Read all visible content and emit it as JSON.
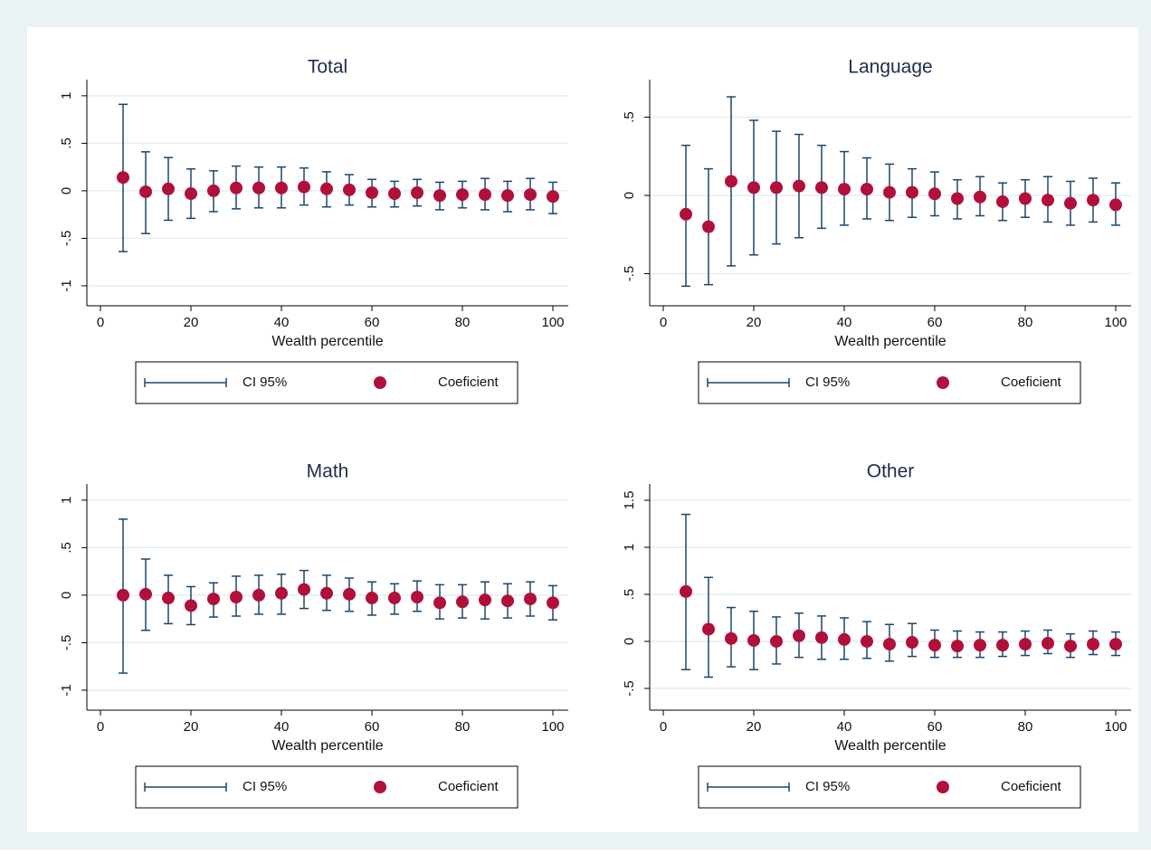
{
  "chart_data": [
    {
      "type": "errorbar",
      "title": "Total",
      "xlabel": "Wealth percentile",
      "x": [
        5,
        10,
        15,
        20,
        25,
        30,
        35,
        40,
        45,
        50,
        55,
        60,
        65,
        70,
        75,
        80,
        85,
        90,
        95,
        100
      ],
      "series": [
        {
          "name": "CI 95%",
          "color": "#1a476f",
          "lower": [
            -0.64,
            -0.45,
            -0.31,
            -0.29,
            -0.22,
            -0.19,
            -0.18,
            -0.18,
            -0.15,
            -0.17,
            -0.15,
            -0.17,
            -0.17,
            -0.16,
            -0.2,
            -0.18,
            -0.2,
            -0.22,
            -0.2,
            -0.24
          ],
          "upper": [
            0.91,
            0.41,
            0.35,
            0.23,
            0.21,
            0.26,
            0.25,
            0.25,
            0.24,
            0.2,
            0.17,
            0.12,
            0.1,
            0.12,
            0.09,
            0.1,
            0.13,
            0.1,
            0.13,
            0.09
          ]
        },
        {
          "name": "Coeficient",
          "color": "#b0103a",
          "values": [
            0.14,
            -0.01,
            0.02,
            -0.03,
            0,
            0.03,
            0.03,
            0.03,
            0.04,
            0.02,
            0.01,
            -0.02,
            -0.03,
            -0.02,
            -0.05,
            -0.04,
            -0.04,
            -0.05,
            -0.04,
            -0.06
          ]
        }
      ],
      "xlim": [
        -3,
        103.4
      ],
      "ylim": [
        -1.21,
        1.17
      ],
      "xticks": [
        0,
        20,
        40,
        60,
        80,
        100
      ],
      "yticks": [
        -1,
        {
          "value": -0.5,
          "label": "-.5"
        },
        0,
        {
          "value": 0.5,
          "label": ".5"
        },
        1
      ],
      "grid": true
    },
    {
      "type": "errorbar",
      "title": "Language",
      "xlabel": "Wealth percentile",
      "x": [
        5,
        10,
        15,
        20,
        25,
        30,
        35,
        40,
        45,
        50,
        55,
        60,
        65,
        70,
        75,
        80,
        85,
        90,
        95,
        100
      ],
      "series": [
        {
          "name": "CI 95%",
          "color": "#1a476f",
          "lower": [
            -0.58,
            -0.57,
            -0.45,
            -0.38,
            -0.31,
            -0.27,
            -0.21,
            -0.19,
            -0.15,
            -0.16,
            -0.14,
            -0.13,
            -0.15,
            -0.13,
            -0.16,
            -0.14,
            -0.17,
            -0.19,
            -0.17,
            -0.19
          ],
          "upper": [
            0.32,
            0.17,
            0.63,
            0.48,
            0.41,
            0.39,
            0.32,
            0.28,
            0.24,
            0.2,
            0.17,
            0.15,
            0.1,
            0.12,
            0.08,
            0.1,
            0.12,
            0.09,
            0.11,
            0.08
          ]
        },
        {
          "name": "Coeficient",
          "color": "#b0103a",
          "values": [
            -0.12,
            -0.2,
            0.09,
            0.05,
            0.05,
            0.06,
            0.05,
            0.04,
            0.04,
            0.02,
            0.02,
            0.01,
            -0.02,
            -0.01,
            -0.04,
            -0.02,
            -0.03,
            -0.05,
            -0.03,
            -0.06
          ]
        }
      ],
      "xlim": [
        -3,
        103.4
      ],
      "ylim": [
        -0.705,
        0.74
      ],
      "xticks": [
        0,
        20,
        40,
        60,
        80,
        100
      ],
      "yticks": [
        {
          "value": -0.5,
          "label": "-.5"
        },
        0,
        {
          "value": 0.5,
          "label": ".5"
        }
      ],
      "grid": true
    },
    {
      "type": "errorbar",
      "title": "Math",
      "xlabel": "Wealth percentile",
      "x": [
        5,
        10,
        15,
        20,
        25,
        30,
        35,
        40,
        45,
        50,
        55,
        60,
        65,
        70,
        75,
        80,
        85,
        90,
        95,
        100
      ],
      "series": [
        {
          "name": "CI 95%",
          "color": "#1a476f",
          "lower": [
            -0.82,
            -0.37,
            -0.3,
            -0.31,
            -0.23,
            -0.22,
            -0.2,
            -0.2,
            -0.14,
            -0.16,
            -0.17,
            -0.21,
            -0.2,
            -0.17,
            -0.25,
            -0.24,
            -0.25,
            -0.24,
            -0.22,
            -0.26
          ],
          "upper": [
            0.8,
            0.38,
            0.21,
            0.09,
            0.13,
            0.2,
            0.21,
            0.22,
            0.26,
            0.21,
            0.18,
            0.14,
            0.12,
            0.15,
            0.11,
            0.11,
            0.14,
            0.12,
            0.14,
            0.1
          ]
        },
        {
          "name": "Coeficient",
          "color": "#b0103a",
          "values": [
            0,
            0.01,
            -0.03,
            -0.11,
            -0.04,
            -0.02,
            0,
            0.02,
            0.06,
            0.02,
            0.01,
            -0.03,
            -0.03,
            -0.02,
            -0.08,
            -0.07,
            -0.05,
            -0.06,
            -0.04,
            -0.08
          ]
        }
      ],
      "xlim": [
        -3,
        103.4
      ],
      "ylim": [
        -1.21,
        1.17
      ],
      "xticks": [
        0,
        20,
        40,
        60,
        80,
        100
      ],
      "yticks": [
        -1,
        {
          "value": -0.5,
          "label": "-.5"
        },
        0,
        {
          "value": 0.5,
          "label": ".5"
        },
        1
      ],
      "grid": true
    },
    {
      "type": "errorbar",
      "title": "Other",
      "xlabel": "Wealth percentile",
      "x": [
        5,
        10,
        15,
        20,
        25,
        30,
        35,
        40,
        45,
        50,
        55,
        60,
        65,
        70,
        75,
        80,
        85,
        90,
        95,
        100
      ],
      "series": [
        {
          "name": "CI 95%",
          "color": "#1a476f",
          "lower": [
            -0.3,
            -0.38,
            -0.27,
            -0.3,
            -0.24,
            -0.17,
            -0.19,
            -0.19,
            -0.18,
            -0.21,
            -0.16,
            -0.17,
            -0.17,
            -0.17,
            -0.16,
            -0.15,
            -0.13,
            -0.17,
            -0.14,
            -0.15
          ],
          "upper": [
            1.35,
            0.68,
            0.36,
            0.32,
            0.26,
            0.3,
            0.27,
            0.25,
            0.21,
            0.18,
            0.19,
            0.12,
            0.11,
            0.1,
            0.1,
            0.11,
            0.12,
            0.08,
            0.11,
            0.1
          ]
        },
        {
          "name": "Coeficient",
          "color": "#b0103a",
          "values": [
            0.53,
            0.13,
            0.03,
            0.01,
            0,
            0.06,
            0.04,
            0.02,
            0,
            -0.03,
            -0.01,
            -0.04,
            -0.05,
            -0.04,
            -0.04,
            -0.03,
            -0.02,
            -0.05,
            -0.03,
            -0.03
          ]
        }
      ],
      "xlim": [
        -3,
        103.4
      ],
      "ylim": [
        -0.731,
        1.673
      ],
      "xticks": [
        0,
        20,
        40,
        60,
        80,
        100
      ],
      "yticks": [
        {
          "value": -0.5,
          "label": "-.5"
        },
        0,
        {
          "value": 0.5,
          "label": ".5"
        },
        1,
        1.5
      ],
      "grid": true
    }
  ]
}
